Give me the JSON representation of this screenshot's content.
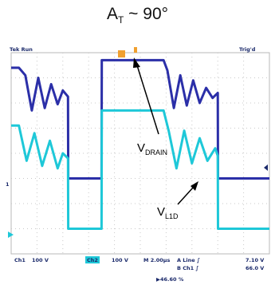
{
  "title": {
    "main": "A",
    "sub": "T",
    "rest": " ~ 90°"
  },
  "scope": {
    "header_left": "Tek Run",
    "header_right": "Trig'd",
    "ch1_marker": "1",
    "footer_ch1": "Ch1",
    "footer_ch1_scale": "100 V",
    "footer_box": "Ch2",
    "footer_ch2_scale": "100 V",
    "footer_timebase": "M 2.00μs",
    "footer_a_line": "A  Line  ∫",
    "footer_a_val": "7.10 V",
    "footer_b_line": "B  Ch1  ∫",
    "footer_b_val": "66.0 V",
    "footer_pct": "▶46.60 %"
  },
  "annotations": [
    {
      "main": "V",
      "sub": "DRAIN"
    },
    {
      "main": "V",
      "sub": "L1D"
    }
  ],
  "chart_data": {
    "type": "line",
    "title": "A_T ~ 90°",
    "xlabel": "",
    "ylabel": "",
    "x_divisions": 10,
    "y_divisions": 8,
    "grid": true,
    "colors": {
      "v_drain": "#2b2fa8",
      "v_l1d": "#1ec8d8",
      "grid": "#c9c9c9"
    },
    "series": [
      {
        "name": "V_DRAIN",
        "x": [
          0,
          0.3,
          0.55,
          0.8,
          1.05,
          1.3,
          1.55,
          1.8,
          2.0,
          2.2,
          2.21,
          3.5,
          3.51,
          5.9,
          6.05,
          6.3,
          6.55,
          6.8,
          7.05,
          7.3,
          7.55,
          7.8,
          8.0,
          8.01,
          10.0
        ],
        "y": [
          3.4,
          3.4,
          3.1,
          1.7,
          3.0,
          1.8,
          2.75,
          1.95,
          2.5,
          2.25,
          -1.0,
          -1.0,
          3.7,
          3.7,
          3.3,
          1.8,
          3.1,
          1.9,
          2.9,
          2.0,
          2.6,
          2.2,
          2.4,
          -1.0,
          -1.0
        ]
      },
      {
        "name": "V_L1D",
        "x": [
          0,
          0.3,
          0.6,
          0.9,
          1.2,
          1.5,
          1.8,
          2.0,
          2.2,
          2.21,
          3.5,
          3.51,
          5.9,
          6.1,
          6.4,
          6.7,
          7.0,
          7.3,
          7.6,
          7.9,
          8.0,
          8.01,
          10.0
        ],
        "y": [
          1.1,
          1.1,
          -0.3,
          0.8,
          -0.5,
          0.5,
          -0.6,
          0.0,
          -0.2,
          -3.0,
          -3.0,
          1.7,
          1.7,
          0.9,
          -0.6,
          0.9,
          -0.4,
          0.6,
          -0.3,
          0.2,
          -0.1,
          -3.0,
          -3.0
        ]
      }
    ]
  }
}
